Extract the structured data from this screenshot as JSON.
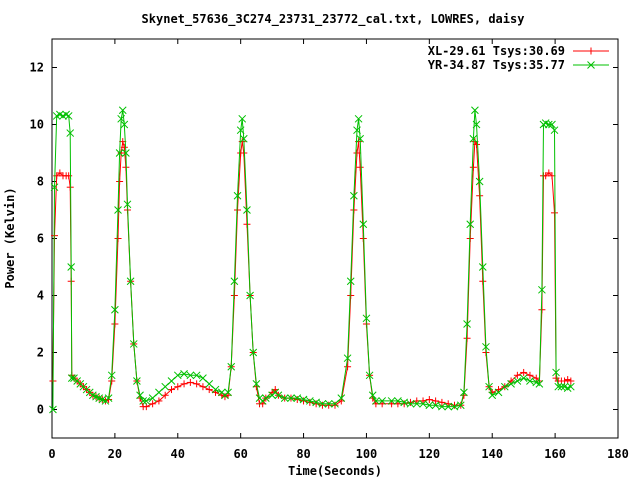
{
  "chart_data": {
    "type": "line",
    "title": "Skynet_57636_3C274_23731_23772_cal.txt, LOWRES, daisy",
    "xlabel": "Time(Seconds)",
    "ylabel": "Power (Kelvin)",
    "xlim": [
      0,
      180
    ],
    "ylim": [
      -1,
      13
    ],
    "xticks": [
      0,
      20,
      40,
      60,
      80,
      100,
      120,
      140,
      160,
      180
    ],
    "yticks": [
      0,
      2,
      4,
      6,
      8,
      10,
      12
    ],
    "legend_position": "top-right",
    "grid": false,
    "series": [
      {
        "name": "XL-29.61 Tsys:30.69",
        "color": "#ff0000",
        "marker": "plus",
        "points": [
          [
            0.3,
            1.0
          ],
          [
            0.8,
            6.1
          ],
          [
            1.5,
            8.2
          ],
          [
            2.5,
            8.3
          ],
          [
            3.5,
            8.2
          ],
          [
            4.5,
            8.2
          ],
          [
            5.3,
            8.2
          ],
          [
            5.8,
            7.8
          ],
          [
            6.1,
            4.5
          ],
          [
            6.3,
            1.2
          ],
          [
            7,
            1.1
          ],
          [
            8,
            1.0
          ],
          [
            9,
            0.9
          ],
          [
            10,
            0.8
          ],
          [
            11,
            0.7
          ],
          [
            12,
            0.6
          ],
          [
            13,
            0.5
          ],
          [
            14,
            0.45
          ],
          [
            15,
            0.4
          ],
          [
            16,
            0.35
          ],
          [
            17,
            0.3
          ],
          [
            18,
            0.35
          ],
          [
            19,
            1.0
          ],
          [
            20,
            3.0
          ],
          [
            21,
            6.0
          ],
          [
            21.5,
            8.0
          ],
          [
            22,
            9.0
          ],
          [
            22.5,
            9.4
          ],
          [
            23,
            9.2
          ],
          [
            23.5,
            8.5
          ],
          [
            24,
            7.0
          ],
          [
            25,
            4.5
          ],
          [
            26,
            2.3
          ],
          [
            27,
            1.0
          ],
          [
            28,
            0.4
          ],
          [
            29,
            0.1
          ],
          [
            30,
            0.1
          ],
          [
            32,
            0.2
          ],
          [
            34,
            0.3
          ],
          [
            36,
            0.5
          ],
          [
            38,
            0.7
          ],
          [
            40,
            0.8
          ],
          [
            42,
            0.9
          ],
          [
            44,
            0.95
          ],
          [
            46,
            0.9
          ],
          [
            48,
            0.8
          ],
          [
            50,
            0.7
          ],
          [
            52,
            0.6
          ],
          [
            54,
            0.5
          ],
          [
            55,
            0.45
          ],
          [
            56,
            0.5
          ],
          [
            57,
            1.5
          ],
          [
            58,
            4.0
          ],
          [
            59,
            7.0
          ],
          [
            60,
            9.0
          ],
          [
            60.5,
            9.4
          ],
          [
            61,
            9.0
          ],
          [
            62,
            6.5
          ],
          [
            63,
            4.0
          ],
          [
            64,
            2.0
          ],
          [
            65,
            0.8
          ],
          [
            66,
            0.2
          ],
          [
            67,
            0.2
          ],
          [
            68,
            0.4
          ],
          [
            70,
            0.6
          ],
          [
            71,
            0.7
          ],
          [
            72,
            0.5
          ],
          [
            74,
            0.4
          ],
          [
            76,
            0.4
          ],
          [
            78,
            0.35
          ],
          [
            80,
            0.3
          ],
          [
            82,
            0.25
          ],
          [
            84,
            0.2
          ],
          [
            86,
            0.15
          ],
          [
            88,
            0.15
          ],
          [
            90,
            0.15
          ],
          [
            92,
            0.3
          ],
          [
            94,
            1.5
          ],
          [
            95,
            4.0
          ],
          [
            96,
            7.0
          ],
          [
            97,
            9.0
          ],
          [
            97.5,
            9.4
          ],
          [
            98,
            8.5
          ],
          [
            99,
            6.0
          ],
          [
            100,
            3.0
          ],
          [
            101,
            1.2
          ],
          [
            102,
            0.4
          ],
          [
            103,
            0.2
          ],
          [
            105,
            0.2
          ],
          [
            108,
            0.2
          ],
          [
            110,
            0.2
          ],
          [
            112,
            0.2
          ],
          [
            114,
            0.25
          ],
          [
            116,
            0.3
          ],
          [
            118,
            0.3
          ],
          [
            120,
            0.35
          ],
          [
            122,
            0.3
          ],
          [
            124,
            0.25
          ],
          [
            126,
            0.2
          ],
          [
            128,
            0.15
          ],
          [
            130,
            0.15
          ],
          [
            131,
            0.5
          ],
          [
            132,
            2.5
          ],
          [
            133,
            6.0
          ],
          [
            134,
            8.5
          ],
          [
            134.5,
            9.4
          ],
          [
            135,
            9.3
          ],
          [
            136,
            7.5
          ],
          [
            137,
            4.5
          ],
          [
            138,
            2.0
          ],
          [
            139,
            0.8
          ],
          [
            140,
            0.6
          ],
          [
            142,
            0.7
          ],
          [
            144,
            0.8
          ],
          [
            146,
            1.0
          ],
          [
            148,
            1.2
          ],
          [
            150,
            1.3
          ],
          [
            152,
            1.2
          ],
          [
            154,
            1.1
          ],
          [
            155,
            1.0
          ],
          [
            155.8,
            3.5
          ],
          [
            156.3,
            8.2
          ],
          [
            157,
            8.2
          ],
          [
            158,
            8.3
          ],
          [
            159,
            8.2
          ],
          [
            159.8,
            6.9
          ],
          [
            160.3,
            1.1
          ],
          [
            161,
            1.0
          ],
          [
            162,
            1.0
          ],
          [
            163,
            1.0
          ],
          [
            164,
            1.05
          ],
          [
            165,
            1.0
          ]
        ]
      },
      {
        "name": "YR-34.87 Tsys:35.77",
        "color": "#00c000",
        "marker": "cross",
        "points": [
          [
            0.3,
            0.0
          ],
          [
            0.8,
            7.8
          ],
          [
            1.5,
            10.3
          ],
          [
            2.5,
            10.35
          ],
          [
            3.5,
            10.3
          ],
          [
            4.5,
            10.35
          ],
          [
            5.3,
            10.3
          ],
          [
            5.8,
            9.7
          ],
          [
            6.1,
            5.0
          ],
          [
            6.3,
            1.1
          ],
          [
            7,
            1.1
          ],
          [
            8,
            1.0
          ],
          [
            9,
            0.9
          ],
          [
            10,
            0.8
          ],
          [
            11,
            0.7
          ],
          [
            12,
            0.6
          ],
          [
            13,
            0.5
          ],
          [
            14,
            0.45
          ],
          [
            15,
            0.4
          ],
          [
            16,
            0.35
          ],
          [
            17,
            0.3
          ],
          [
            18,
            0.4
          ],
          [
            19,
            1.2
          ],
          [
            20,
            3.5
          ],
          [
            21,
            7.0
          ],
          [
            21.5,
            9.0
          ],
          [
            22,
            10.2
          ],
          [
            22.5,
            10.5
          ],
          [
            23,
            10.0
          ],
          [
            23.5,
            9.0
          ],
          [
            24,
            7.2
          ],
          [
            25,
            4.5
          ],
          [
            26,
            2.3
          ],
          [
            27,
            1.0
          ],
          [
            28,
            0.5
          ],
          [
            29,
            0.3
          ],
          [
            30,
            0.3
          ],
          [
            32,
            0.4
          ],
          [
            34,
            0.6
          ],
          [
            36,
            0.8
          ],
          [
            38,
            1.0
          ],
          [
            40,
            1.2
          ],
          [
            42,
            1.25
          ],
          [
            44,
            1.2
          ],
          [
            46,
            1.2
          ],
          [
            48,
            1.1
          ],
          [
            50,
            0.9
          ],
          [
            52,
            0.7
          ],
          [
            54,
            0.6
          ],
          [
            55,
            0.5
          ],
          [
            56,
            0.6
          ],
          [
            57,
            1.5
          ],
          [
            58,
            4.5
          ],
          [
            59,
            7.5
          ],
          [
            60,
            9.8
          ],
          [
            60.5,
            10.2
          ],
          [
            61,
            9.5
          ],
          [
            62,
            7.0
          ],
          [
            63,
            4.0
          ],
          [
            64,
            2.0
          ],
          [
            65,
            0.9
          ],
          [
            66,
            0.4
          ],
          [
            67,
            0.3
          ],
          [
            68,
            0.4
          ],
          [
            70,
            0.5
          ],
          [
            71,
            0.6
          ],
          [
            72,
            0.5
          ],
          [
            74,
            0.4
          ],
          [
            76,
            0.4
          ],
          [
            78,
            0.4
          ],
          [
            80,
            0.35
          ],
          [
            82,
            0.3
          ],
          [
            84,
            0.25
          ],
          [
            86,
            0.2
          ],
          [
            88,
            0.2
          ],
          [
            90,
            0.2
          ],
          [
            92,
            0.4
          ],
          [
            94,
            1.8
          ],
          [
            95,
            4.5
          ],
          [
            96,
            7.5
          ],
          [
            97,
            9.8
          ],
          [
            97.5,
            10.2
          ],
          [
            98,
            9.5
          ],
          [
            99,
            6.5
          ],
          [
            100,
            3.2
          ],
          [
            101,
            1.2
          ],
          [
            102,
            0.5
          ],
          [
            103,
            0.3
          ],
          [
            105,
            0.3
          ],
          [
            108,
            0.3
          ],
          [
            110,
            0.3
          ],
          [
            112,
            0.25
          ],
          [
            114,
            0.2
          ],
          [
            116,
            0.2
          ],
          [
            118,
            0.2
          ],
          [
            120,
            0.15
          ],
          [
            122,
            0.15
          ],
          [
            124,
            0.1
          ],
          [
            126,
            0.1
          ],
          [
            128,
            0.1
          ],
          [
            130,
            0.15
          ],
          [
            131,
            0.6
          ],
          [
            132,
            3.0
          ],
          [
            133,
            6.5
          ],
          [
            134,
            9.5
          ],
          [
            134.5,
            10.5
          ],
          [
            135,
            10.0
          ],
          [
            136,
            8.0
          ],
          [
            137,
            5.0
          ],
          [
            138,
            2.2
          ],
          [
            139,
            0.8
          ],
          [
            140,
            0.5
          ],
          [
            142,
            0.6
          ],
          [
            144,
            0.8
          ],
          [
            146,
            0.9
          ],
          [
            148,
            1.0
          ],
          [
            150,
            1.1
          ],
          [
            152,
            1.0
          ],
          [
            154,
            0.95
          ],
          [
            155,
            0.9
          ],
          [
            155.8,
            4.2
          ],
          [
            156.3,
            10.0
          ],
          [
            157,
            10.05
          ],
          [
            158,
            10.0
          ],
          [
            159,
            10.0
          ],
          [
            159.8,
            9.8
          ],
          [
            160.3,
            1.3
          ],
          [
            161,
            0.8
          ],
          [
            162,
            0.8
          ],
          [
            163,
            0.8
          ],
          [
            164,
            0.75
          ],
          [
            165,
            0.8
          ]
        ]
      }
    ]
  }
}
